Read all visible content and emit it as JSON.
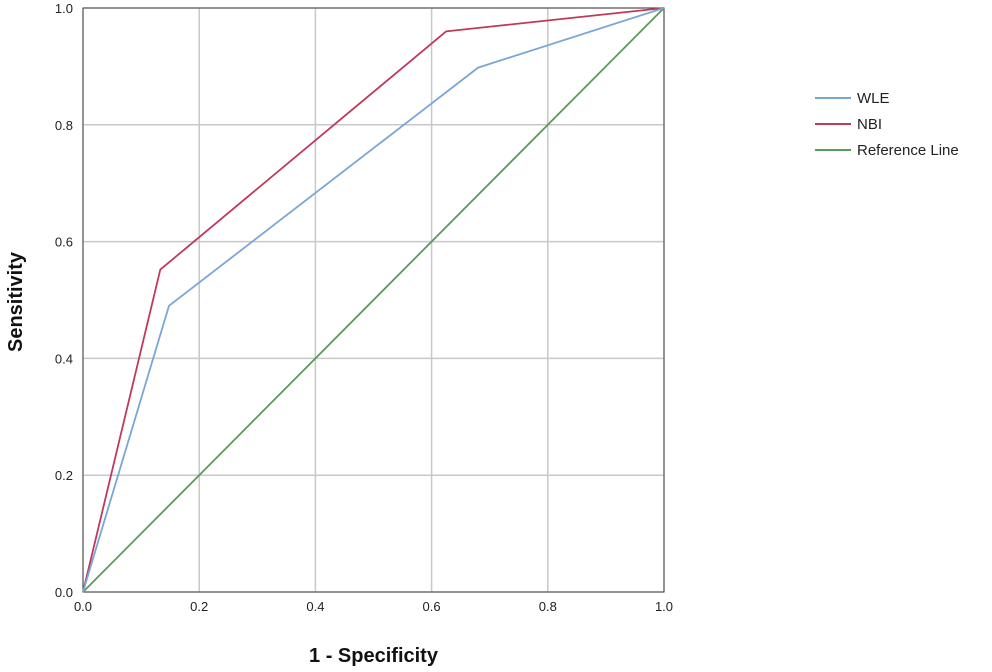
{
  "chart_data": {
    "type": "line",
    "title": "",
    "xlabel": "1 - Specificity",
    "ylabel": "Sensitivity",
    "xlim": [
      0,
      1
    ],
    "ylim": [
      0,
      1
    ],
    "grid": true,
    "legend_position": "right",
    "x_ticks": [
      "0.0",
      "0.2",
      "0.4",
      "0.6",
      "0.8",
      "1.0"
    ],
    "y_ticks": [
      "0.0",
      "0.2",
      "0.4",
      "0.6",
      "0.8",
      "1.0"
    ],
    "series": [
      {
        "name": "WLE",
        "color": "#7aa6d6",
        "points": [
          [
            0,
            0
          ],
          [
            0.148,
            0.49
          ],
          [
            0.68,
            0.898
          ],
          [
            1,
            1
          ]
        ]
      },
      {
        "name": "NBI",
        "color": "#c0395a",
        "points": [
          [
            0,
            0
          ],
          [
            0.133,
            0.552
          ],
          [
            0.625,
            0.96
          ],
          [
            1,
            1
          ]
        ]
      },
      {
        "name": "Reference Line",
        "color": "#5a9a5a",
        "points": [
          [
            0,
            0
          ],
          [
            1,
            1
          ]
        ]
      }
    ]
  }
}
